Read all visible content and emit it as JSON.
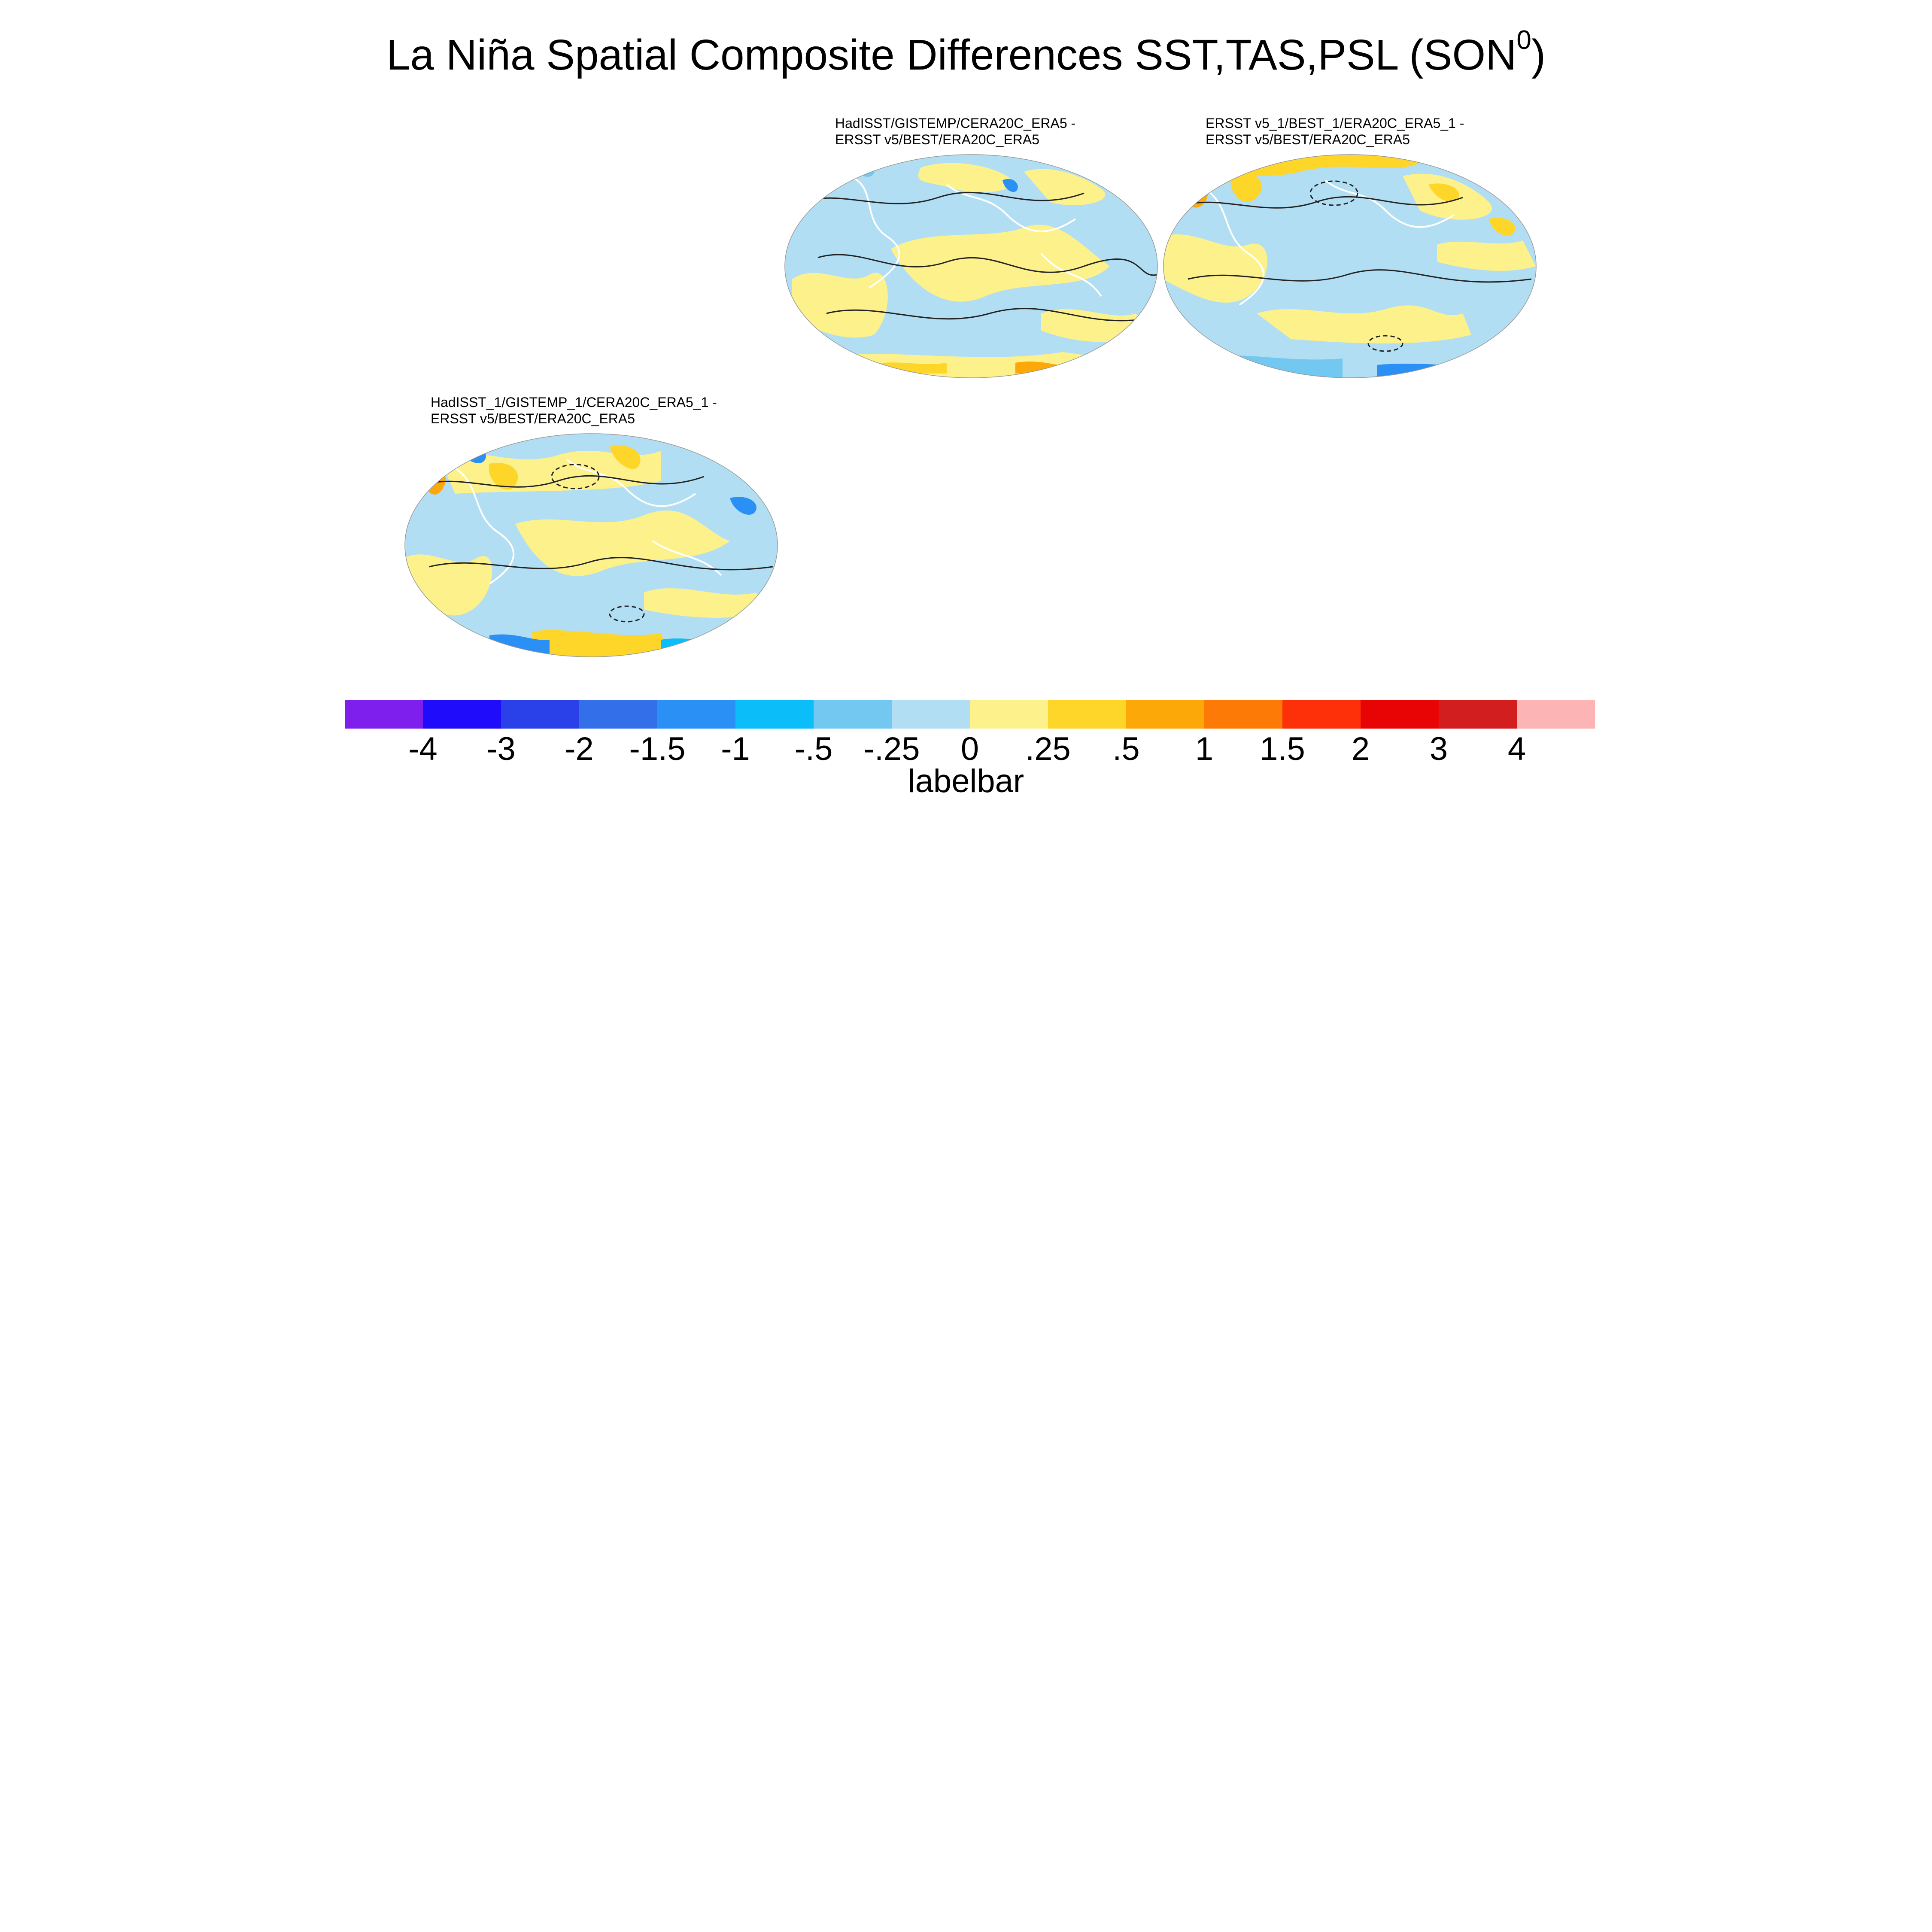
{
  "title": {
    "main": "La Niña Spatial Composite Differences SST,TAS,PSL (SON",
    "sup": "0",
    "close": ")"
  },
  "panels": [
    {
      "id": "top-center",
      "line1": "HadISST/GISTEMP/CERA20C_ERA5 -",
      "line2": "ERSST v5/BEST/ERA20C_ERA5"
    },
    {
      "id": "top-right",
      "line1": "ERSST v5_1/BEST_1/ERA20C_ERA5_1 -",
      "line2": "ERSST v5/BEST/ERA20C_ERA5"
    },
    {
      "id": "bottom-left",
      "line1": "HadISST_1/GISTEMP_1/CERA20C_ERA5_1 -",
      "line2": "ERSST v5/BEST/ERA20C_ERA5"
    }
  ],
  "labelbar": {
    "title": "labelbar",
    "ticks": [
      "-4",
      "-3",
      "-2",
      "-1.5",
      "-1",
      "-.5",
      "-.25",
      "0",
      ".25",
      ".5",
      "1",
      "1.5",
      "2",
      "3",
      "4"
    ],
    "colors": [
      "#7e1fee",
      "#1f0cfa",
      "#2a40e8",
      "#346fea",
      "#2a90f6",
      "#0bbdf9",
      "#72c8f0",
      "#b2def3",
      "#fdf18b",
      "#fed529",
      "#fda809",
      "#fd7a06",
      "#fd300a",
      "#e80405",
      "#d31e1f",
      "#fcb4b4"
    ]
  },
  "legend_colors": {
    "ocean_light_blue": "#b2def3",
    "light_yellow": "#fdf18b",
    "yellow": "#fed529",
    "orange": "#fda809",
    "blue": "#2a90f6",
    "contour": "#222222",
    "coast": "#ffffff"
  }
}
